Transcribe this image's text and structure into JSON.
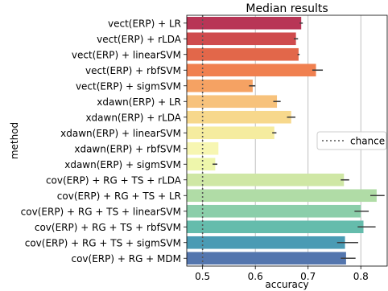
{
  "chart_data": {
    "type": "bar",
    "orientation": "horizontal",
    "title": "Median results",
    "xlabel": "accuracy",
    "ylabel": "method",
    "xlim": [
      0.47,
      0.85
    ],
    "xticks": [
      "0.5",
      "0.6",
      "0.7",
      "0.8"
    ],
    "grid": true,
    "legend": {
      "position": "right",
      "entries": [
        {
          "label": "chance",
          "style": "dotted"
        }
      ]
    },
    "chance_level": 0.5,
    "categories": [
      "vect(ERP) + LR",
      "vect(ERP) + rLDA",
      "vect(ERP) + linearSVM",
      "vect(ERP) + rbfSVM",
      "vect(ERP) + sigmSVM",
      "xdawn(ERP) + LR",
      "xdawn(ERP) + rLDA",
      "xdawn(ERP) + linearSVM",
      "xdawn(ERP) + rbfSVM",
      "xdawn(ERP) + sigmSVM",
      "cov(ERP) + RG + TS + rLDA",
      "cov(ERP) + RG + TS + LR",
      "cov(ERP) + RG + TS + linearSVM",
      "cov(ERP) + RG + TS + rbfSVM",
      "cov(ERP) + RG + TS + sigmSVM",
      "cov(ERP) + RG + MDM"
    ],
    "values": [
      0.687,
      0.677,
      0.682,
      0.715,
      0.595,
      0.641,
      0.668,
      0.636,
      0.53,
      0.524,
      0.768,
      0.83,
      0.8,
      0.805,
      0.77,
      0.772
    ],
    "errors": [
      [
        0.684,
        0.69
      ],
      [
        0.673,
        0.681
      ],
      [
        0.68,
        0.684
      ],
      [
        0.708,
        0.728
      ],
      [
        0.588,
        0.6
      ],
      [
        0.634,
        0.648
      ],
      [
        0.66,
        0.676
      ],
      [
        0.632,
        0.64
      ],
      [
        0.53,
        0.53
      ],
      [
        0.519,
        0.528
      ],
      [
        0.762,
        0.778
      ],
      [
        0.818,
        0.845
      ],
      [
        0.788,
        0.815
      ],
      [
        0.794,
        0.828
      ],
      [
        0.755,
        0.795
      ],
      [
        0.762,
        0.79
      ]
    ],
    "colors": [
      "#b83556",
      "#cf4b4d",
      "#e2674a",
      "#f08050",
      "#f5a263",
      "#f7c27c",
      "#f7d88c",
      "#f5ec9f",
      "#f7f6b2",
      "#eef6ab",
      "#cfe7a5",
      "#b0dca6",
      "#8bceaa",
      "#65bcac",
      "#4a9bb4",
      "#5476ae"
    ]
  }
}
